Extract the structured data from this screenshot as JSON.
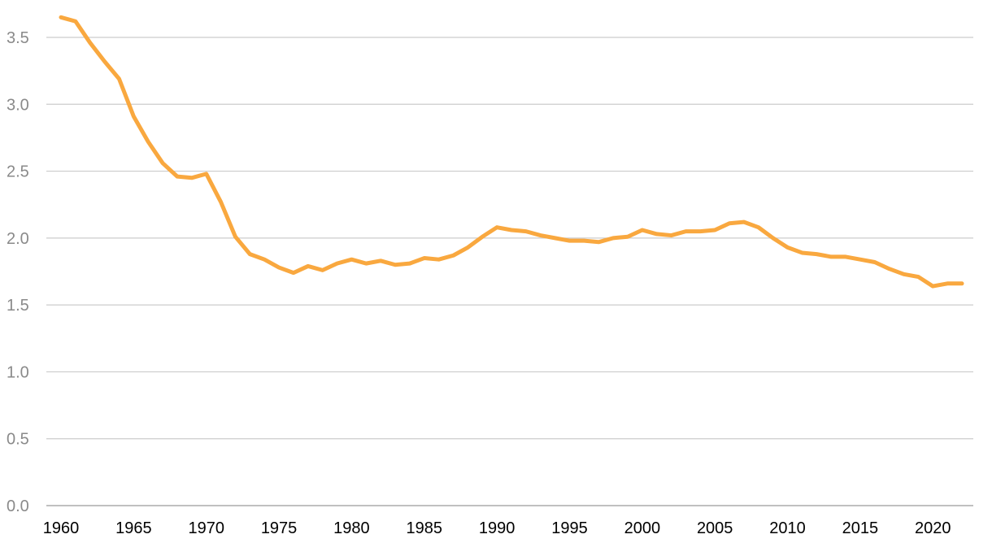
{
  "chart_data": {
    "type": "line",
    "title": "",
    "xlabel": "",
    "ylabel": "",
    "xlim": [
      1960,
      2022
    ],
    "ylim": [
      0,
      3.5
    ],
    "y_ticks": [
      "0.0",
      "0.5",
      "1.0",
      "1.5",
      "2.0",
      "2.5",
      "3.0",
      "3.5"
    ],
    "x_ticks": [
      "1960",
      "1965",
      "1970",
      "1975",
      "1980",
      "1985",
      "1990",
      "1995",
      "2000",
      "2005",
      "2010",
      "2015",
      "2020"
    ],
    "grid": "horizontal",
    "legend": "none",
    "colors": {
      "series": "#f9a83f",
      "grid": "#cccccc",
      "y_tick_text": "#8a8a8a",
      "x_tick_text": "#000000"
    },
    "series": [
      {
        "x": [
          1960,
          1961,
          1962,
          1963,
          1964,
          1965,
          1966,
          1967,
          1968,
          1969,
          1970,
          1971,
          1972,
          1973,
          1974,
          1975,
          1976,
          1977,
          1978,
          1979,
          1980,
          1981,
          1982,
          1983,
          1984,
          1985,
          1986,
          1987,
          1988,
          1989,
          1990,
          1991,
          1992,
          1993,
          1994,
          1995,
          1996,
          1997,
          1998,
          1999,
          2000,
          2001,
          2002,
          2003,
          2004,
          2005,
          2006,
          2007,
          2008,
          2009,
          2010,
          2011,
          2012,
          2013,
          2014,
          2015,
          2016,
          2017,
          2018,
          2019,
          2020,
          2021,
          2022
        ],
        "values": [
          3.65,
          3.62,
          3.46,
          3.32,
          3.19,
          2.91,
          2.72,
          2.56,
          2.46,
          2.45,
          2.48,
          2.27,
          2.01,
          1.88,
          1.84,
          1.78,
          1.74,
          1.79,
          1.76,
          1.81,
          1.84,
          1.81,
          1.83,
          1.8,
          1.81,
          1.85,
          1.84,
          1.87,
          1.93,
          2.01,
          2.08,
          2.06,
          2.05,
          2.02,
          2.0,
          1.98,
          1.98,
          1.97,
          2.0,
          2.01,
          2.06,
          2.03,
          2.02,
          2.05,
          2.05,
          2.06,
          2.11,
          2.12,
          2.08,
          2.0,
          1.93,
          1.89,
          1.88,
          1.86,
          1.86,
          1.84,
          1.82,
          1.77,
          1.73,
          1.71,
          1.64,
          1.66,
          1.66
        ]
      }
    ]
  }
}
